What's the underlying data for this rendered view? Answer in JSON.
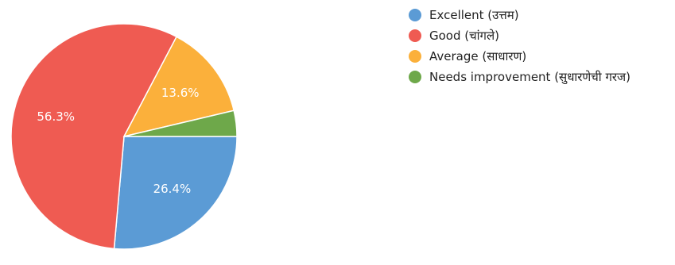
{
  "chart_data": {
    "type": "pie",
    "title": "",
    "start_angle_deg": 0,
    "direction": "clockwise",
    "legend_position": "top-right",
    "series": [
      {
        "name": "Excellent (उत्तम)",
        "value": 26.4,
        "label": "26.4%",
        "color": "#5b9bd5",
        "show_label": true
      },
      {
        "name": "Good (चांगले)",
        "value": 56.3,
        "label": "56.3%",
        "color": "#ef5b52",
        "show_label": true
      },
      {
        "name": "Average (साधारण)",
        "value": 13.6,
        "label": "13.6%",
        "color": "#fbb03b",
        "show_label": true
      },
      {
        "name": "Needs improvement (सुधारणेची गरज)",
        "value": 3.7,
        "label": "",
        "color": "#6ea84a",
        "show_label": false
      }
    ]
  }
}
